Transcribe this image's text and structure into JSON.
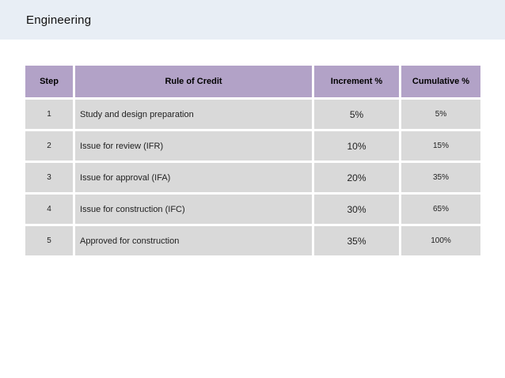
{
  "title_bar": {
    "title": "Engineering"
  },
  "colors": {
    "title_bar_bg": "#e8eef5",
    "table_header_bg": "#b2a2c7",
    "table_row_bg": "#d9d9d9",
    "gap": "#ffffff",
    "text": "#1f1f1f"
  },
  "table": {
    "headers": [
      "Step",
      "Rule of Credit",
      "Increment %",
      "Cumulative %"
    ],
    "rows": [
      {
        "step": "1",
        "rule": "Study and design preparation",
        "increment": "5%",
        "cumulative": "5%"
      },
      {
        "step": "2",
        "rule": "Issue for review (IFR)",
        "increment": "10%",
        "cumulative": "15%"
      },
      {
        "step": "3",
        "rule": "Issue for approval (IFA)",
        "increment": "20%",
        "cumulative": "35%"
      },
      {
        "step": "4",
        "rule": "Issue for construction (IFC)",
        "increment": "30%",
        "cumulative": "65%"
      },
      {
        "step": "5",
        "rule": "Approved for construction",
        "increment": "35%",
        "cumulative": "100%"
      }
    ]
  }
}
